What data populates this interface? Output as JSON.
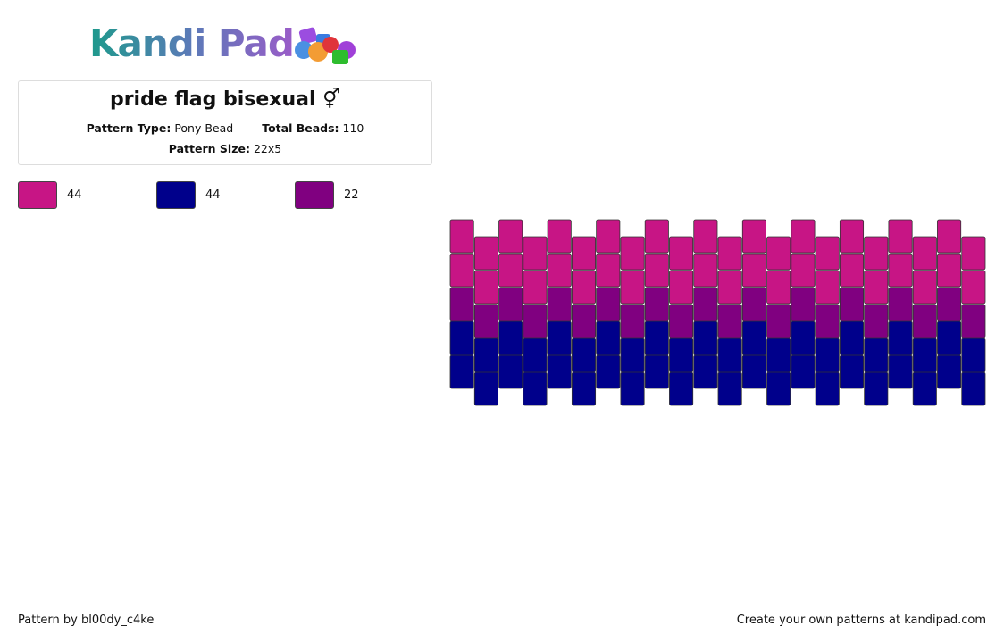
{
  "header": {
    "logo": "Kandi Pad"
  },
  "info": {
    "title": "pride flag bisexual ⚥",
    "pattern_type_label": "Pattern Type:",
    "pattern_type": "Pony Bead",
    "total_beads_label": "Total Beads:",
    "total_beads": "110",
    "pattern_size_label": "Pattern Size:",
    "pattern_size": "22x5"
  },
  "palette": [
    {
      "color": "#c71585",
      "count": "44"
    },
    {
      "color": "#00008b",
      "count": "44"
    },
    {
      "color": "#800080",
      "count": "22"
    }
  ],
  "pattern": [
    [
      0,
      0,
      2,
      1,
      1
    ],
    [
      0,
      0,
      2,
      1,
      1
    ],
    [
      0,
      0,
      2,
      1,
      1
    ],
    [
      0,
      0,
      2,
      1,
      1
    ],
    [
      0,
      0,
      2,
      1,
      1
    ],
    [
      0,
      0,
      2,
      1,
      1
    ],
    [
      0,
      0,
      2,
      1,
      1
    ],
    [
      0,
      0,
      2,
      1,
      1
    ],
    [
      0,
      0,
      2,
      1,
      1
    ],
    [
      0,
      0,
      2,
      1,
      1
    ],
    [
      0,
      0,
      2,
      1,
      1
    ],
    [
      0,
      0,
      2,
      1,
      1
    ],
    [
      0,
      0,
      2,
      1,
      1
    ],
    [
      0,
      0,
      2,
      1,
      1
    ],
    [
      0,
      0,
      2,
      1,
      1
    ],
    [
      0,
      0,
      2,
      1,
      1
    ],
    [
      0,
      0,
      2,
      1,
      1
    ],
    [
      0,
      0,
      2,
      1,
      1
    ],
    [
      0,
      0,
      2,
      1,
      1
    ],
    [
      0,
      0,
      2,
      1,
      1
    ],
    [
      0,
      0,
      2,
      1,
      1
    ],
    [
      0,
      0,
      2,
      1,
      1
    ]
  ],
  "footer": {
    "credit": "Pattern by bl00dy_c4ke",
    "link": "Create your own patterns at kandipad.com"
  }
}
